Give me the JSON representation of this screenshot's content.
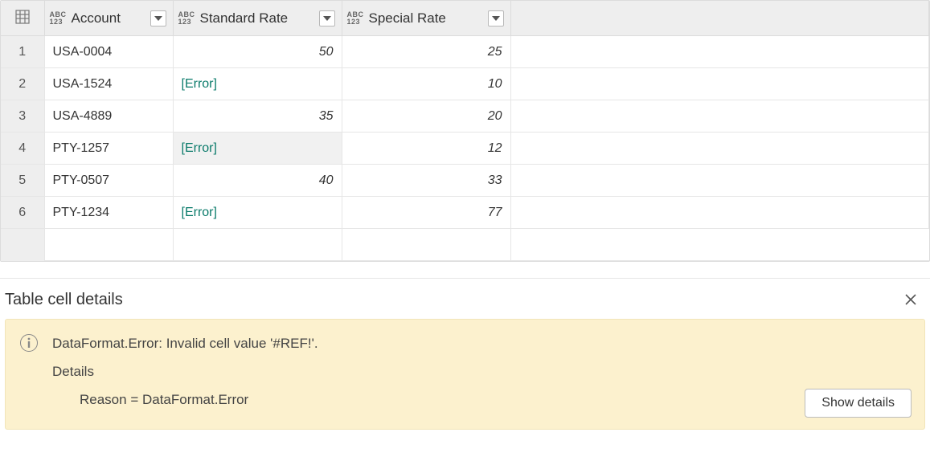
{
  "grid": {
    "columns": [
      {
        "name": "Account",
        "type_top": "ABC",
        "type_bot": "123"
      },
      {
        "name": "Standard Rate",
        "type_top": "ABC",
        "type_bot": "123"
      },
      {
        "name": "Special Rate",
        "type_top": "ABC",
        "type_bot": "123"
      }
    ],
    "error_token": "[Error]",
    "rows": [
      {
        "n": "1",
        "account": "USA-0004",
        "std": "50",
        "std_is_error": false,
        "spec": "25"
      },
      {
        "n": "2",
        "account": "USA-1524",
        "std": "[Error]",
        "std_is_error": true,
        "spec": "10"
      },
      {
        "n": "3",
        "account": "USA-4889",
        "std": "35",
        "std_is_error": false,
        "spec": "20"
      },
      {
        "n": "4",
        "account": "PTY-1257",
        "std": "[Error]",
        "std_is_error": true,
        "spec": "12",
        "selected": true
      },
      {
        "n": "5",
        "account": "PTY-0507",
        "std": "40",
        "std_is_error": false,
        "spec": "33"
      },
      {
        "n": "6",
        "account": "PTY-1234",
        "std": "[Error]",
        "std_is_error": true,
        "spec": "77"
      }
    ],
    "colors": {
      "header_bg": "#eeeeee",
      "border": "#dcdcdc",
      "cell_border": "#e6e6e6",
      "error_text": "#0b7b6b",
      "selected_bg": "#f1f1f1"
    }
  },
  "details": {
    "title": "Table cell details",
    "error_line": "DataFormat.Error: Invalid cell value '#REF!'.",
    "details_label": "Details",
    "reason_line": "Reason = DataFormat.Error",
    "show_details_label": "Show details",
    "panel_bg": "#fcf1ce",
    "panel_border": "#f2e5b8"
  }
}
